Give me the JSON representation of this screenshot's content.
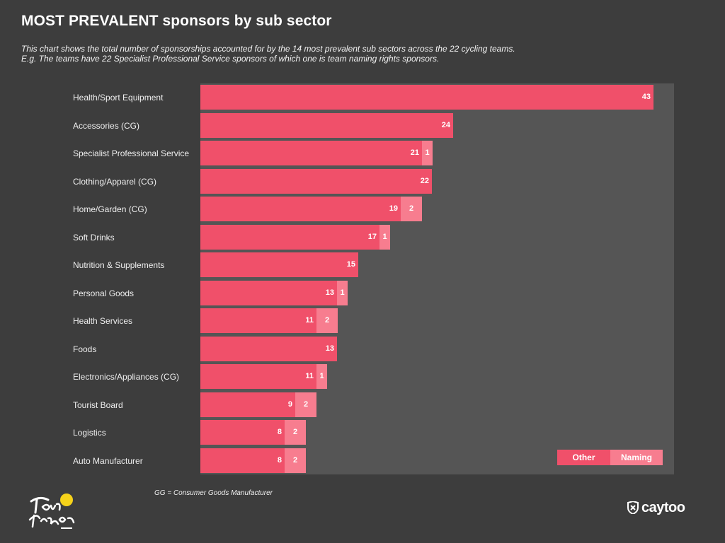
{
  "title": "MOST PREVALENT sponsors by sub sector",
  "subtitle_line1": "This chart shows the total number of sponsorships accounted for by the 14 most prevalent sub sectors across the 22 cycling teams.",
  "subtitle_line2": "E.g. The teams have 22 Specialist Professional Service sponsors of which one is team naming rights sponsors.",
  "footnote": "GG = Consumer Goods Manufacturer",
  "logos": {
    "tour_de_france": "Tour de France 2023",
    "caytoo": "caytoo"
  },
  "colors": {
    "other": "#f0506a",
    "naming": "#f77d8f",
    "plot_bg": "#555555",
    "page_bg": "#3d3d3d"
  },
  "chart_data": {
    "type": "bar",
    "orientation": "horizontal",
    "stacked": true,
    "categories": [
      "Health/Sport Equipment",
      "Accessories (CG)",
      "Specialist Professional Service",
      "Clothing/Apparel (CG)",
      "Home/Garden (CG)",
      "Soft Drinks",
      "Nutrition & Supplements",
      "Personal Goods",
      "Health Services",
      "Foods",
      "Electronics/Appliances (CG)",
      "Tourist Board",
      "Logistics",
      "Auto Manufacturer"
    ],
    "series": [
      {
        "name": "Other",
        "values": [
          43,
          24,
          21,
          22,
          19,
          17,
          15,
          13,
          11,
          13,
          11,
          9,
          8,
          8
        ]
      },
      {
        "name": "Naming",
        "values": [
          0,
          0,
          1,
          0,
          2,
          1,
          0,
          1,
          2,
          0,
          1,
          2,
          2,
          2
        ]
      }
    ],
    "xlim": [
      0,
      45
    ],
    "legend": "bottom-right",
    "grid": false
  }
}
